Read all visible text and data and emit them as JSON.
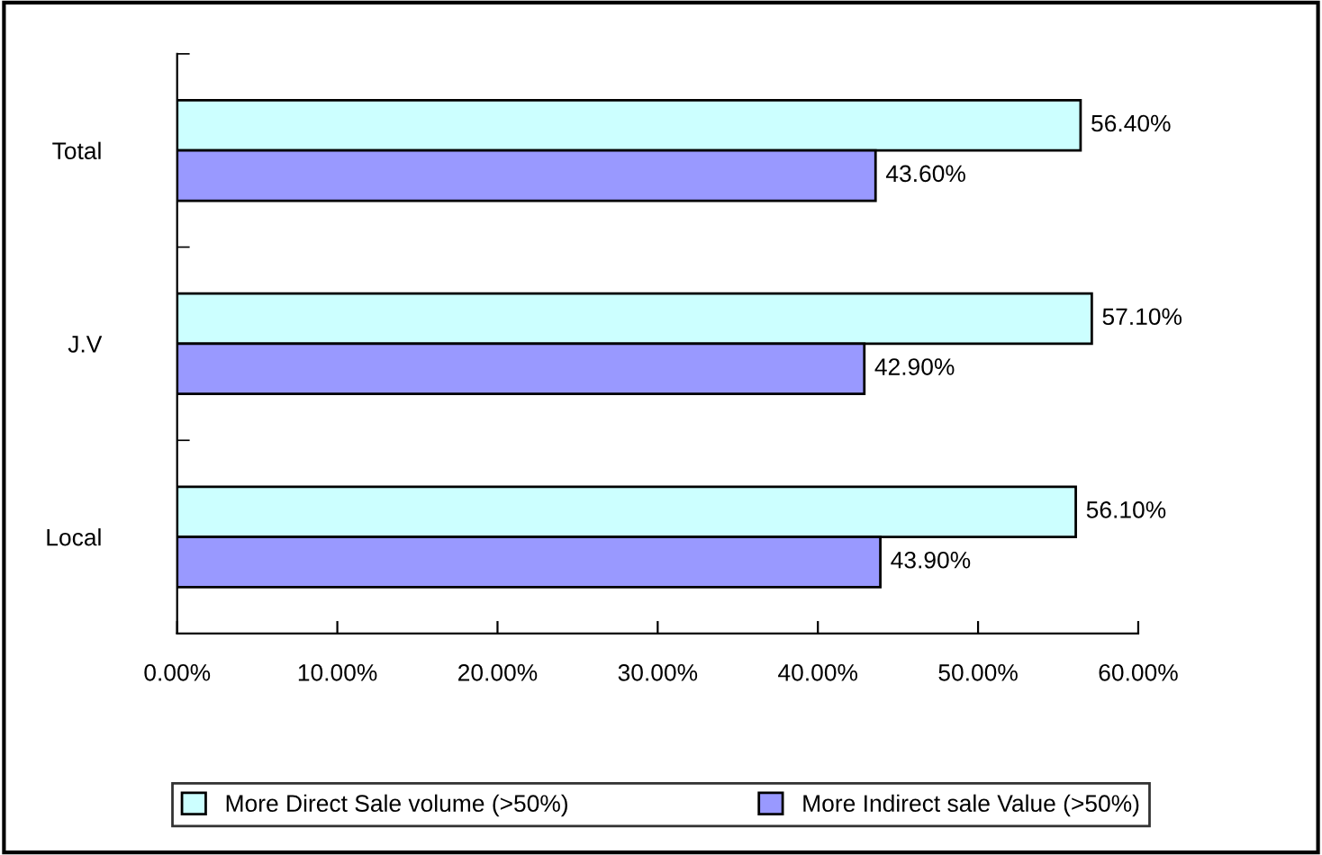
{
  "chart_data": {
    "type": "bar",
    "orientation": "horizontal",
    "categories": [
      "Total",
      "J.V",
      "Local"
    ],
    "series": [
      {
        "name": "More Direct Sale volume (>50%)",
        "color": "#ccffff",
        "values": [
          56.4,
          57.1,
          56.1
        ],
        "value_labels": [
          "56.40%",
          "57.10%",
          "56.10%"
        ]
      },
      {
        "name": "More Indirect sale Value (>50%)",
        "color": "#9999ff",
        "values": [
          43.6,
          42.9,
          43.9
        ],
        "value_labels": [
          "43.60%",
          "42.90%",
          "43.90%"
        ]
      }
    ],
    "xlim": [
      0,
      60
    ],
    "xticks": [
      {
        "value": 0,
        "label": "0.00%"
      },
      {
        "value": 10,
        "label": "10.00%"
      },
      {
        "value": 20,
        "label": "20.00%"
      },
      {
        "value": 30,
        "label": "30.00%"
      },
      {
        "value": 40,
        "label": "40.00%"
      },
      {
        "value": 50,
        "label": "50.00%"
      },
      {
        "value": 60,
        "label": "60.00%"
      }
    ],
    "grid": false,
    "legend": "bottom"
  }
}
